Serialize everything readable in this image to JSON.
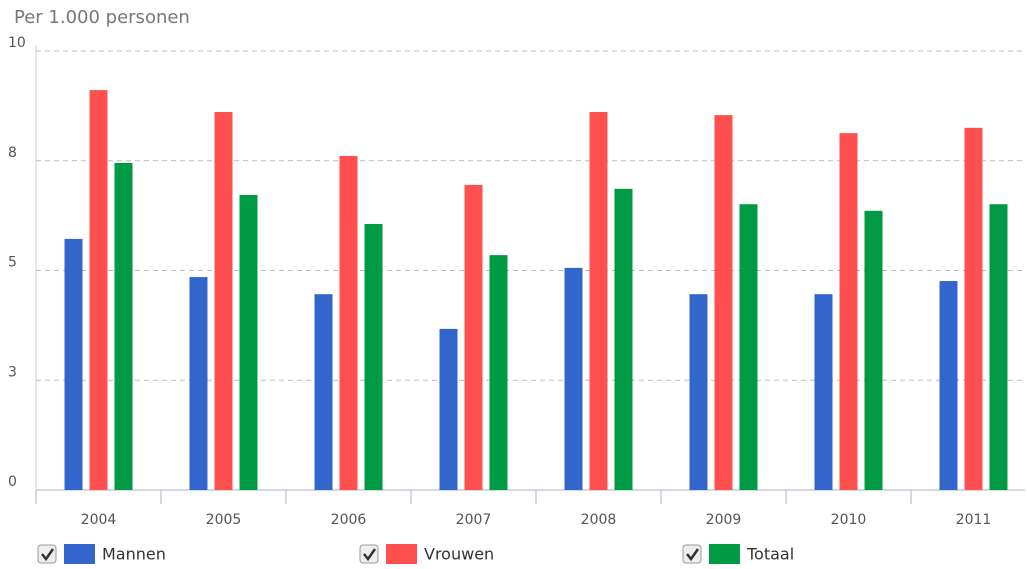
{
  "chart_data": {
    "type": "bar",
    "title": "Per 1.000 personen",
    "categories": [
      "2004",
      "2005",
      "2006",
      "2007",
      "2008",
      "2009",
      "2010",
      "2011"
    ],
    "series": [
      {
        "name": "Mannen",
        "color": "#3366cc",
        "values": [
          5.72,
          4.85,
          4.46,
          3.67,
          5.06,
          4.46,
          4.46,
          4.76
        ]
      },
      {
        "name": "Vrouwen",
        "color": "#ff5050",
        "values": [
          9.11,
          8.61,
          7.61,
          6.95,
          8.61,
          8.54,
          8.13,
          8.25
        ]
      },
      {
        "name": "Totaal",
        "color": "#009944",
        "values": [
          7.45,
          6.72,
          6.06,
          5.35,
          6.86,
          6.51,
          6.36,
          6.51
        ]
      }
    ],
    "ylim": [
      0,
      10
    ],
    "yticks": [
      0,
      {
        "value": 2.5,
        "label": "3"
      },
      5,
      {
        "value": 7.5,
        "label": "8"
      },
      10
    ],
    "grid": true,
    "legend": "bottom"
  }
}
